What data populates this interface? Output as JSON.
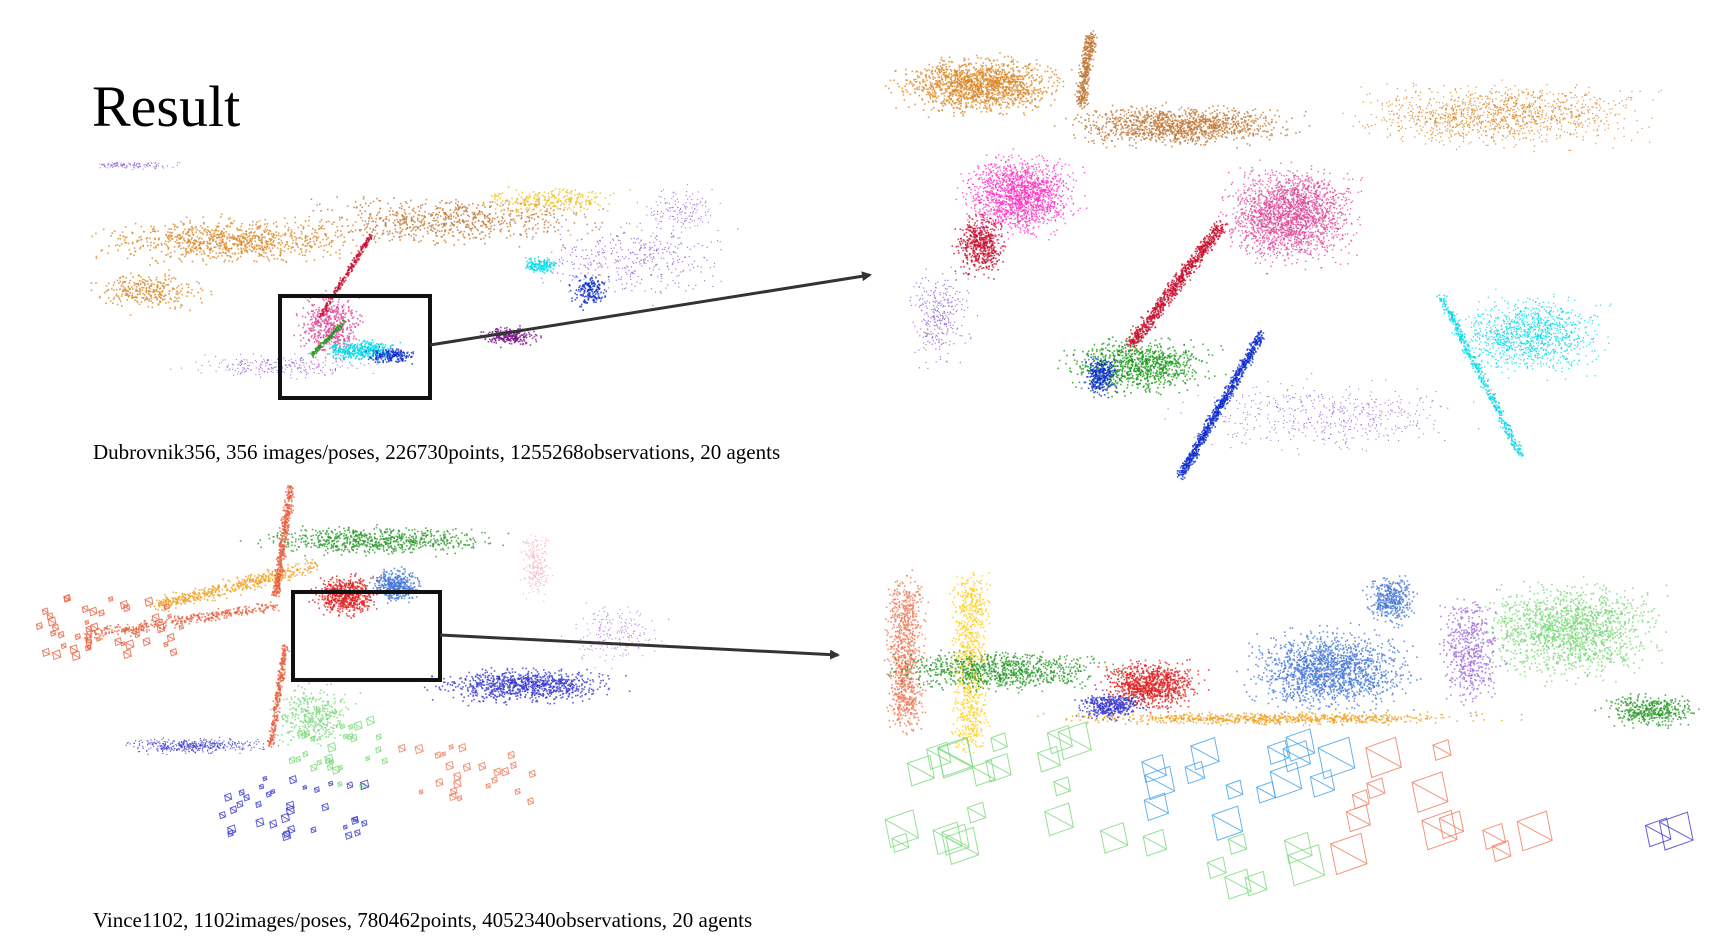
{
  "slide": {
    "title": "Result"
  },
  "dataset_1": {
    "caption": "Dubrovnik356, 356 images/poses, 226730points, 1255268observations, 20 agents",
    "palette": [
      "#d98a2b",
      "#c07a3a",
      "#e6a02a",
      "#e0479a",
      "#ff2fc0",
      "#c8102e",
      "#1a9a1a",
      "#1030d0",
      "#00d8e8",
      "#7a1a8a",
      "#8a5ad0",
      "#f0c020"
    ]
  },
  "dataset_2": {
    "caption": "Vince1102, 1102images/poses, 780462points, 4052340observations, 20 agents",
    "palette": [
      "#2a9a2a",
      "#f0a020",
      "#e86040",
      "#e02020",
      "#4a7ad8",
      "#3a3ad0",
      "#7ad87a",
      "#f07a5a",
      "#ffd020",
      "#a070d8",
      "#f8b0c0",
      "#40a0e8"
    ]
  }
}
